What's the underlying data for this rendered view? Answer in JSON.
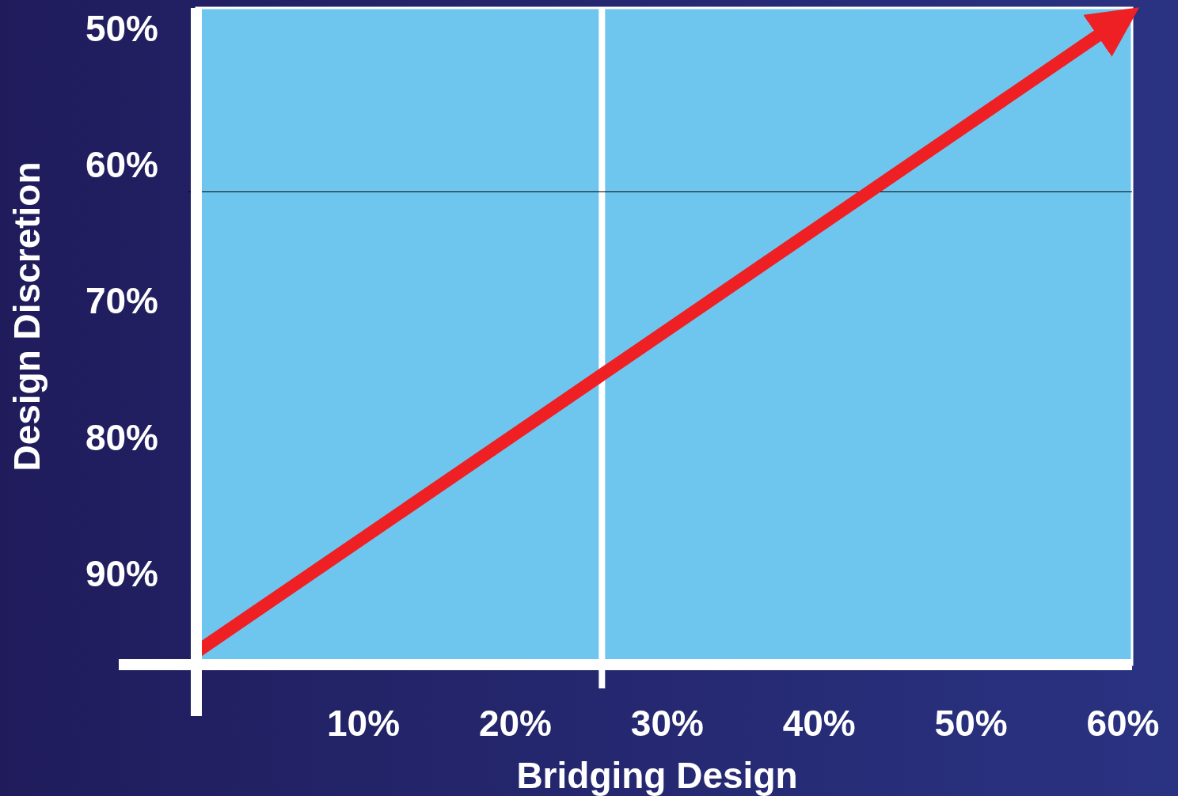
{
  "chart_data": {
    "type": "line",
    "xlabel": "Bridging Design",
    "ylabel": "Design Discretion",
    "x": [
      -0.9,
      59.7
    ],
    "series": [
      {
        "color": "#ee2024",
        "values": [
          95.7,
          49.5
        ]
      }
    ],
    "xlim": [
      -1,
      60.6
    ],
    "ylim": [
      96.7,
      48.5
    ],
    "xticks": [
      {
        "value": 10,
        "label": "10%"
      },
      {
        "value": 20,
        "label": "20%"
      },
      {
        "value": 30,
        "label": "30%"
      },
      {
        "value": 40,
        "label": "40%"
      },
      {
        "value": 50,
        "label": "50%"
      },
      {
        "value": 60,
        "label": "60%"
      }
    ],
    "yticks": [
      {
        "value": 50,
        "label": "50%"
      },
      {
        "value": 60,
        "label": "60%"
      },
      {
        "value": 70,
        "label": "70%"
      },
      {
        "value": 80,
        "label": "80%"
      },
      {
        "value": 90,
        "label": "90%"
      }
    ],
    "ref_lines": [
      {
        "axis": "x",
        "value": 25.7,
        "color": "#ffffff"
      },
      {
        "axis": "y",
        "value": 62,
        "color": "#000000"
      }
    ],
    "grid": false,
    "marker": "none",
    "line_style": "solid"
  }
}
